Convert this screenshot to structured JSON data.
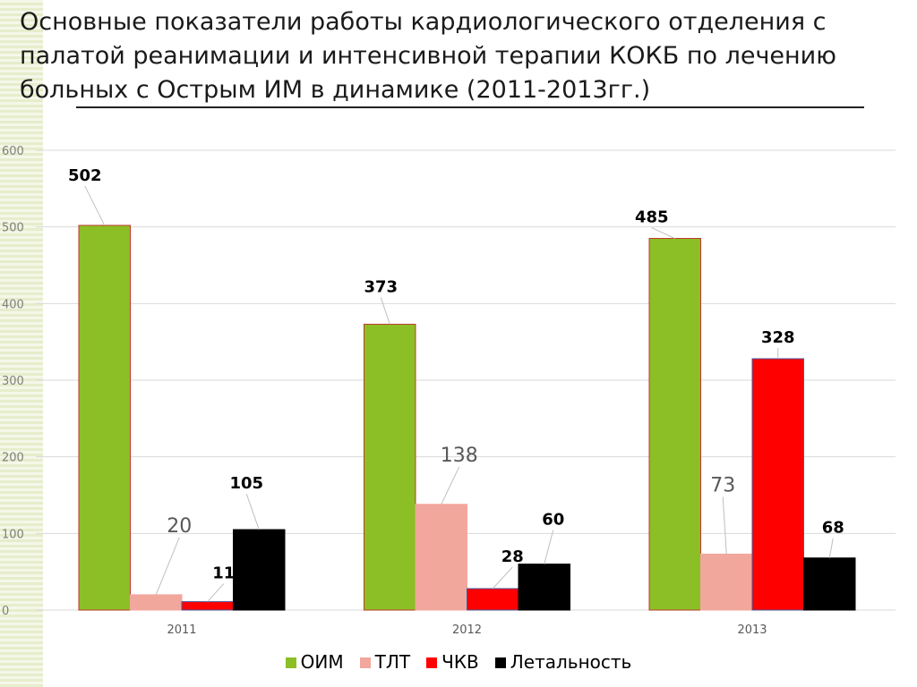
{
  "title": "Основные показатели работы кардиологического отделения с\nпалатой реанимации и интенсивной терапии КОКБ по лечению\nбольных с Острым ИМ в динамике (2011-2013гг.)",
  "chart_data": {
    "type": "bar",
    "categories": [
      "2011",
      "2012",
      "2013"
    ],
    "series": [
      {
        "name": "ОИМ",
        "values": [
          502,
          373,
          485
        ],
        "color": "#8cbf26",
        "border": "#c0392b",
        "label_color": "#000000",
        "label_bold": true
      },
      {
        "name": "ТЛТ",
        "values": [
          20,
          138,
          73
        ],
        "color": "#f2a79c",
        "border": "#f2a79c",
        "label_color": "#595959",
        "label_bold": false
      },
      {
        "name": "ЧКВ",
        "values": [
          11,
          28,
          328
        ],
        "color": "#ff0000",
        "border": "#4a5a9a",
        "label_color": "#000000",
        "label_bold": true
      },
      {
        "name": "Летальность",
        "values": [
          105,
          60,
          68
        ],
        "color": "#000000",
        "border": "#000000",
        "label_color": "#000000",
        "label_bold": true
      }
    ],
    "ylim": [
      0,
      600
    ],
    "yticks": [
      0,
      100,
      200,
      300,
      400,
      500,
      600
    ],
    "grid": true,
    "legend": "bottom"
  }
}
